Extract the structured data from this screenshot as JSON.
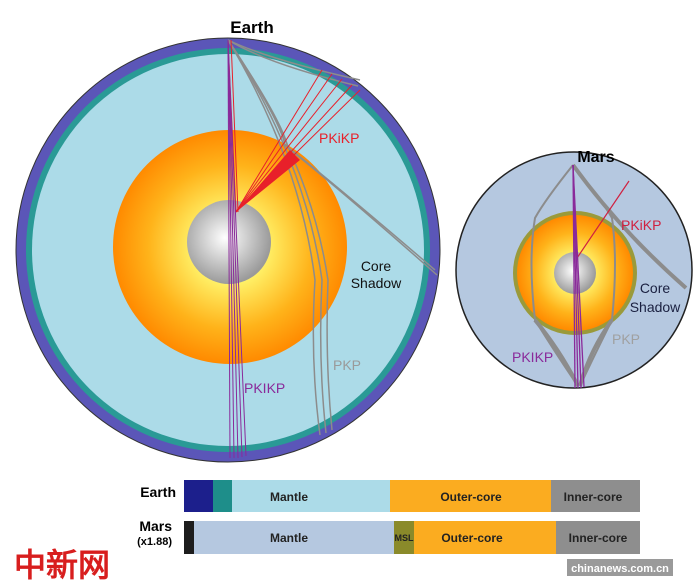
{
  "earth": {
    "title": "Earth",
    "labels": {
      "pkikp_reflected": "PKiKP",
      "core_shadow_1": "Core",
      "core_shadow_2": "Shadow",
      "pkp": "PKP",
      "pkikp": "PKIKP"
    }
  },
  "mars": {
    "title": "Mars",
    "labels": {
      "pkikp_reflected": "PKiKP",
      "core_shadow_1": "Core",
      "core_shadow_2": "Shadow",
      "pkp": "PKP",
      "pkikp": "PKIKP"
    }
  },
  "bars": {
    "earth": {
      "label": "Earth",
      "segments": [
        {
          "label": "",
          "color": "#1c1f8c"
        },
        {
          "label": "",
          "color": "#1e8e8a"
        },
        {
          "label": "Mantle",
          "color": "#acdbe8"
        },
        {
          "label": "Outer-core",
          "color": "#fbac20"
        },
        {
          "label": "Inner-core",
          "color": "#8e8e8e"
        }
      ]
    },
    "mars": {
      "label": "Mars",
      "scale": "(x1.88)",
      "segments": [
        {
          "label": "",
          "color": "#1d1d1d"
        },
        {
          "label": "Mantle",
          "color": "#b5c8e0"
        },
        {
          "label": "MSL",
          "color": "#8a8a2a"
        },
        {
          "label": "Outer-core",
          "color": "#fbac20"
        },
        {
          "label": "Inner-core",
          "color": "#8e8e8e"
        }
      ]
    }
  },
  "watermark": {
    "logo": "中新网",
    "site": "chinanews.com.cn"
  },
  "colors": {
    "pkikp_reflected": "#e8202a",
    "pkikp": "#8a2a9a",
    "pkp": "#8c8c8c"
  }
}
